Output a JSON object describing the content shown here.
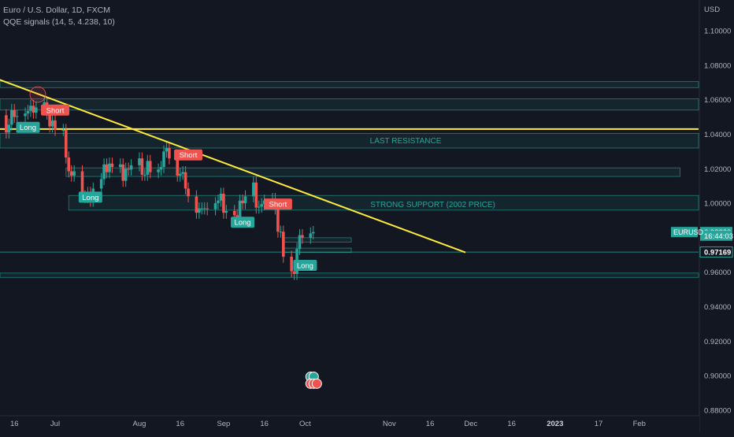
{
  "header": {
    "symbol_title": "Euro / U.S. Dollar, 1D, FXCM",
    "indicator_title": "QQE signals (14, 5, 4.238, 10)"
  },
  "chart_data": {
    "type": "candlestick",
    "currency_label": "USD",
    "ylim": [
      0.88,
      1.108
    ],
    "y_ticks": [
      "1.10000",
      "1.08000",
      "1.06000",
      "1.04000",
      "1.02000",
      "1.00000",
      "0.98000",
      "0.96000",
      "0.94000",
      "0.92000",
      "0.90000",
      "0.88000"
    ],
    "x_ticks": [
      {
        "label": "16",
        "x": "2022-06-16"
      },
      {
        "label": "Jul",
        "x": "2022-07-01"
      },
      {
        "label": "Aug",
        "x": "2022-08-01"
      },
      {
        "label": "16",
        "x": "2022-08-16"
      },
      {
        "label": "Sep",
        "x": "2022-09-01"
      },
      {
        "label": "16",
        "x": "2022-09-16"
      },
      {
        "label": "Oct",
        "x": "2022-10-01"
      },
      {
        "label": "Nov",
        "x": "2022-11-01"
      },
      {
        "label": "16",
        "x": "2022-11-16"
      },
      {
        "label": "Dec",
        "x": "2022-12-01"
      },
      {
        "label": "16",
        "x": "2022-12-16"
      },
      {
        "label": "2023",
        "x": "2023-01-01",
        "bold": true
      },
      {
        "label": "17",
        "x": "2023-01-17"
      },
      {
        "label": "Feb",
        "x": "2023-02-01"
      }
    ],
    "candles_close": [
      {
        "x": "2022-06-09",
        "c": 1.0425
      },
      {
        "x": "2022-06-10",
        "c": 1.051
      },
      {
        "x": "2022-06-13",
        "c": 1.041
      },
      {
        "x": "2022-06-14",
        "c": 1.0455
      },
      {
        "x": "2022-06-15",
        "c": 1.054
      },
      {
        "x": "2022-06-16",
        "c": 1.05
      },
      {
        "x": "2022-06-17",
        "c": 1.0505
      },
      {
        "x": "2022-06-20",
        "c": 1.052
      },
      {
        "x": "2022-06-21",
        "c": 1.0535
      },
      {
        "x": "2022-06-22",
        "c": 1.0565
      },
      {
        "x": "2022-06-23",
        "c": 1.0525
      },
      {
        "x": "2022-06-24",
        "c": 1.0555
      },
      {
        "x": "2022-06-27",
        "c": 1.0585
      },
      {
        "x": "2022-06-28",
        "c": 1.052
      },
      {
        "x": "2022-06-29",
        "c": 1.0445
      },
      {
        "x": "2022-06-30",
        "c": 1.048
      },
      {
        "x": "2022-07-01",
        "c": 1.0425
      },
      {
        "x": "2022-07-04",
        "c": 1.0425
      },
      {
        "x": "2022-07-05",
        "c": 1.0265
      },
      {
        "x": "2022-07-06",
        "c": 1.0185
      },
      {
        "x": "2022-07-07",
        "c": 1.016
      },
      {
        "x": "2022-07-08",
        "c": 1.0185
      },
      {
        "x": "2022-07-11",
        "c": 1.004
      },
      {
        "x": "2022-07-12",
        "c": 1.0035
      },
      {
        "x": "2022-07-13",
        "c": 1.006
      },
      {
        "x": "2022-07-14",
        "c": 1.0015
      },
      {
        "x": "2022-07-15",
        "c": 1.0085
      },
      {
        "x": "2022-07-18",
        "c": 1.014
      },
      {
        "x": "2022-07-19",
        "c": 1.0225
      },
      {
        "x": "2022-07-20",
        "c": 1.018
      },
      {
        "x": "2022-07-21",
        "c": 1.023
      },
      {
        "x": "2022-07-22",
        "c": 1.021
      },
      {
        "x": "2022-07-25",
        "c": 1.0225
      },
      {
        "x": "2022-07-26",
        "c": 1.013
      },
      {
        "x": "2022-07-27",
        "c": 1.02
      },
      {
        "x": "2022-07-28",
        "c": 1.0195
      },
      {
        "x": "2022-07-29",
        "c": 1.022
      },
      {
        "x": "2022-08-01",
        "c": 1.026
      },
      {
        "x": "2022-08-02",
        "c": 1.0165
      },
      {
        "x": "2022-08-03",
        "c": 1.0165
      },
      {
        "x": "2022-08-04",
        "c": 1.0245
      },
      {
        "x": "2022-08-05",
        "c": 1.018
      },
      {
        "x": "2022-08-08",
        "c": 1.0195
      },
      {
        "x": "2022-08-09",
        "c": 1.021
      },
      {
        "x": "2022-08-10",
        "c": 1.03
      },
      {
        "x": "2022-08-11",
        "c": 1.032
      },
      {
        "x": "2022-08-12",
        "c": 1.026
      },
      {
        "x": "2022-08-15",
        "c": 1.016
      },
      {
        "x": "2022-08-16",
        "c": 1.017
      },
      {
        "x": "2022-08-17",
        "c": 1.018
      },
      {
        "x": "2022-08-18",
        "c": 1.0085
      },
      {
        "x": "2022-08-19",
        "c": 1.004
      },
      {
        "x": "2022-08-22",
        "c": 0.9945
      },
      {
        "x": "2022-08-23",
        "c": 0.997
      },
      {
        "x": "2022-08-24",
        "c": 0.997
      },
      {
        "x": "2022-08-25",
        "c": 0.997
      },
      {
        "x": "2022-08-26",
        "c": 0.9965
      },
      {
        "x": "2022-08-29",
        "c": 1.0
      },
      {
        "x": "2022-08-30",
        "c": 1.0015
      },
      {
        "x": "2022-08-31",
        "c": 1.0055
      },
      {
        "x": "2022-09-01",
        "c": 0.9945
      },
      {
        "x": "2022-09-02",
        "c": 0.9955
      },
      {
        "x": "2022-09-05",
        "c": 0.993
      },
      {
        "x": "2022-09-06",
        "c": 0.9905
      },
      {
        "x": "2022-09-07",
        "c": 1.0015
      },
      {
        "x": "2022-09-08",
        "c": 1.0
      },
      {
        "x": "2022-09-09",
        "c": 1.004
      },
      {
        "x": "2022-09-12",
        "c": 1.012
      },
      {
        "x": "2022-09-13",
        "c": 0.9975
      },
      {
        "x": "2022-09-14",
        "c": 0.998
      },
      {
        "x": "2022-09-15",
        "c": 0.9995
      },
      {
        "x": "2022-09-16",
        "c": 1.0015
      },
      {
        "x": "2022-09-19",
        "c": 1.0025
      },
      {
        "x": "2022-09-20",
        "c": 0.997
      },
      {
        "x": "2022-09-21",
        "c": 0.9835
      },
      {
        "x": "2022-09-22",
        "c": 0.9835
      },
      {
        "x": "2022-09-23",
        "c": 0.969
      },
      {
        "x": "2022-09-26",
        "c": 0.9605
      },
      {
        "x": "2022-09-27",
        "c": 0.959
      },
      {
        "x": "2022-09-28",
        "c": 0.9735
      },
      {
        "x": "2022-09-29",
        "c": 0.9815
      },
      {
        "x": "2022-09-30",
        "c": 0.98
      },
      {
        "x": "2022-10-03",
        "c": 0.9825
      },
      {
        "x": "2022-10-04",
        "c": 0.9833
      }
    ],
    "zones": [
      {
        "from": 1.0705,
        "to": 1.067,
        "start": "2022-06-09",
        "end": "2023-02-28"
      },
      {
        "from": 1.0605,
        "to": 1.054,
        "start": "2022-06-09",
        "end": "2023-02-28"
      },
      {
        "from": 1.0405,
        "to": 1.032,
        "start": "2022-06-09",
        "end": "2023-02-28"
      },
      {
        "from": 1.0205,
        "to": 1.0155,
        "start": "2022-07-05",
        "end": "2023-02-16"
      },
      {
        "from": 1.0045,
        "to": 0.996,
        "start": "2022-07-06",
        "end": "2023-02-28"
      },
      {
        "from": 0.98,
        "to": 0.9775,
        "start": "2022-09-23",
        "end": "2022-10-18"
      },
      {
        "from": 0.974,
        "to": 0.9715,
        "start": "2022-09-23",
        "end": "2022-10-18"
      },
      {
        "from": 0.9595,
        "to": 0.957,
        "start": "2022-06-09",
        "end": "2023-02-28"
      }
    ],
    "zone_labels": [
      {
        "text": "LAST RESISTANCE",
        "x": "2022-11-07",
        "y": 1.0365
      },
      {
        "text": "STRONG SUPPORT (2002 PRICE)",
        "x": "2022-11-17",
        "y": 0.9995
      }
    ],
    "horizontal_lines": [
      {
        "y": 1.043,
        "color": "#ffeb3b"
      },
      {
        "y": 0.9717,
        "color": "#26a69a"
      }
    ],
    "trendline": {
      "from": {
        "x": "2022-06-09",
        "y": 1.0725
      },
      "to": {
        "x": "2022-11-29",
        "y": 0.9715
      },
      "color": "#ffeb3b"
    },
    "signals": [
      {
        "text": "Long",
        "type": "long",
        "x": "2022-06-21",
        "y": 1.044
      },
      {
        "text": "Short",
        "type": "short",
        "x": "2022-07-01",
        "y": 1.054
      },
      {
        "text": "Long",
        "type": "long",
        "x": "2022-07-14",
        "y": 1.0035
      },
      {
        "text": "Short",
        "type": "short",
        "x": "2022-08-19",
        "y": 1.028
      },
      {
        "text": "Long",
        "type": "long",
        "x": "2022-09-08",
        "y": 0.989
      },
      {
        "text": "Short",
        "type": "short",
        "x": "2022-09-21",
        "y": 0.9995
      },
      {
        "text": "Long",
        "type": "long",
        "x": "2022-10-01",
        "y": 0.964
      }
    ],
    "price_labels": [
      {
        "text": "0.98330",
        "y": 0.9833,
        "color": "#26a69a"
      },
      {
        "text": "16:44:03",
        "y": 0.9812,
        "color": "#26a69a"
      },
      {
        "text": "0.97169",
        "y": 0.9717,
        "color": "#131722",
        "border": "#26a69a"
      }
    ],
    "symbol_tag": {
      "text": "EURUSD",
      "y": 0.9833
    },
    "event_icons": [
      {
        "x": "2022-10-03",
        "y": 0.8994,
        "count": 2
      },
      {
        "x": "2022-10-03",
        "y": 0.8954,
        "count": 3
      }
    ],
    "grid": false
  }
}
